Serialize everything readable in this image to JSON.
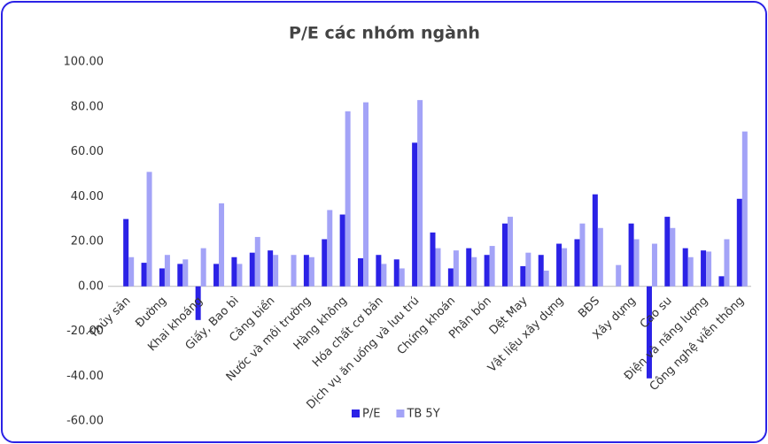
{
  "chart_data": {
    "type": "bar",
    "title": "P/E các nhóm ngành",
    "categories": [
      "Thủy sản",
      null,
      "Đường",
      null,
      "Khai khoáng",
      null,
      "Giấy, Bao bì",
      null,
      "Cảng biển",
      null,
      "Nước và môi trường",
      null,
      "Hàng không",
      null,
      "Hóa chất cơ bản",
      null,
      "Dịch vụ ăn uống và lưu trú",
      null,
      "Chứng khoán",
      null,
      "Phân bón",
      null,
      "Dệt May",
      null,
      "Vật liệu xây dựng",
      null,
      "BĐS",
      null,
      "Xây dựng",
      null,
      "Cao su",
      null,
      "Điện và năng lượng",
      null,
      "Công nghệ viễn thông"
    ],
    "series": [
      {
        "name": "P/E",
        "color": "#2b22e6",
        "values": [
          30,
          10.5,
          8,
          10,
          -15,
          10,
          13,
          15,
          16,
          null,
          14,
          21,
          32,
          12.5,
          14,
          12,
          64,
          24,
          8,
          17,
          14,
          28,
          9,
          14,
          19,
          21,
          41,
          null,
          28,
          -41,
          31,
          17,
          16,
          4.5,
          39
        ]
      },
      {
        "name": "TB 5Y",
        "color": "#a3a3f7",
        "values": [
          13,
          51,
          14,
          12,
          17,
          37,
          10,
          22,
          14,
          14,
          13,
          34,
          78,
          82,
          10,
          8,
          83,
          17,
          16,
          13,
          18,
          31,
          15,
          7,
          17,
          28,
          26,
          9.5,
          21,
          19,
          26,
          13,
          15.5,
          21,
          69
        ]
      }
    ],
    "ylim": [
      -60,
      100
    ],
    "yticks": [
      {
        "value": -60,
        "label": "-60.00"
      },
      {
        "value": -40,
        "label": "-40.00"
      },
      {
        "value": -20,
        "label": "-20.00"
      },
      {
        "value": 0,
        "label": "0.00"
      },
      {
        "value": 20,
        "label": "20.00"
      },
      {
        "value": 40,
        "label": "40.00"
      },
      {
        "value": 60,
        "label": "60.00"
      },
      {
        "value": 80,
        "label": "80.00"
      },
      {
        "value": 100,
        "label": "100.00"
      }
    ],
    "legend": "bottom"
  }
}
